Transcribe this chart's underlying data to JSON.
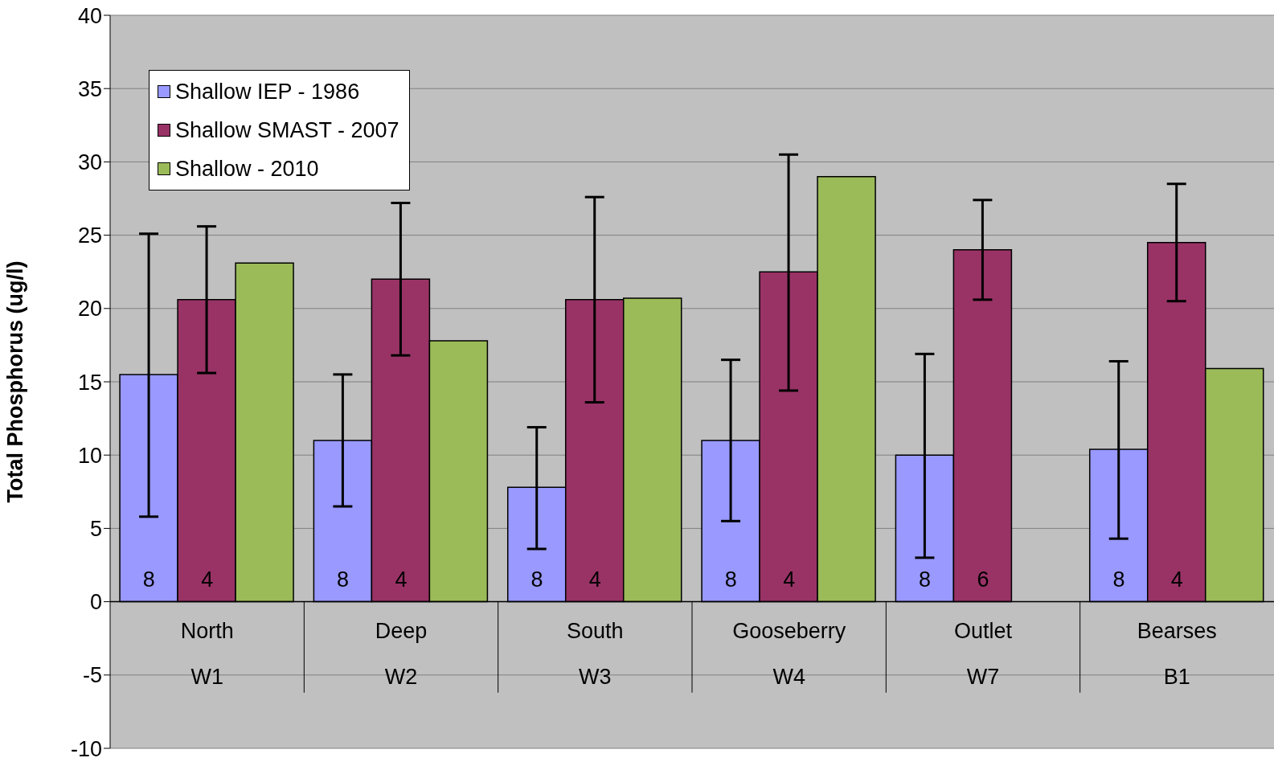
{
  "chart_data": {
    "type": "bar",
    "ylabel": "Total Phosphorus (ug/l)",
    "categories": [
      "North\nW1",
      "Deep\nW2",
      "South\nW3",
      "Gooseberry\nW4",
      "Outlet\nW7",
      "Bearses\nB1"
    ],
    "series": [
      {
        "name": "Shallow IEP - 1986",
        "color": "#9999ff",
        "values": [
          15.5,
          11.0,
          7.8,
          11.0,
          10.0,
          10.4
        ],
        "errors": [
          [
            5.8,
            25.1
          ],
          [
            6.5,
            15.5
          ],
          [
            3.6,
            11.9
          ],
          [
            5.5,
            16.5
          ],
          [
            3.0,
            16.9
          ],
          [
            4.3,
            16.4
          ]
        ]
      },
      {
        "name": "Shallow SMAST - 2007",
        "color": "#993366",
        "values": [
          20.6,
          22.0,
          20.6,
          22.5,
          24.0,
          24.5
        ],
        "errors": [
          [
            15.6,
            25.6
          ],
          [
            16.8,
            27.2
          ],
          [
            13.6,
            27.6
          ],
          [
            14.4,
            30.5
          ],
          [
            20.6,
            27.4
          ],
          [
            20.5,
            28.5
          ]
        ]
      },
      {
        "name": "Shallow - 2010",
        "color": "#9bbb59",
        "values": [
          23.1,
          17.8,
          20.7,
          29.0,
          null,
          15.9
        ]
      }
    ],
    "annotations": [
      "8",
      "4",
      "8",
      "4",
      "8",
      "4",
      "8",
      "4",
      "8",
      "6",
      "8",
      "4"
    ],
    "ylim": [
      -10,
      40
    ],
    "yticks": [
      -10,
      -5,
      0,
      5,
      10,
      15,
      20,
      25,
      30,
      35,
      40
    ],
    "grid": "y",
    "legend": "top left"
  }
}
